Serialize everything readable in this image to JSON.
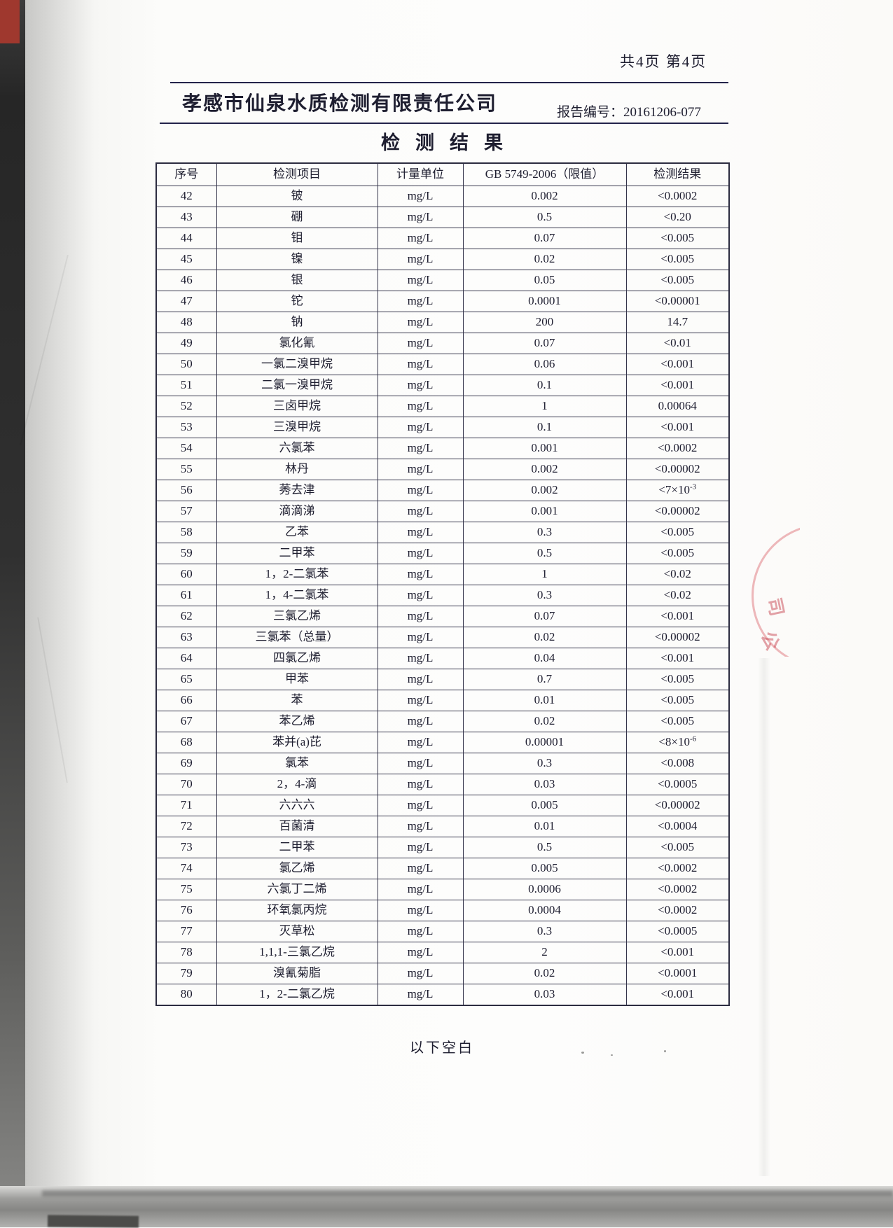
{
  "page": {
    "page_info": "共4页 第4页",
    "company": "孝感市仙泉水质检测有限责任公司",
    "report_no_label": "报告编号：",
    "report_no": "20161206-077",
    "title": "检测结果",
    "footer_note": "以下空白"
  },
  "table": {
    "headers": [
      "序号",
      "检测项目",
      "计量单位",
      "GB 5749-2006（限值）",
      "检测结果"
    ],
    "rows": [
      {
        "no": "42",
        "item": "铍",
        "unit": "mg/L",
        "limit": "0.002",
        "result": "<0.0002",
        "result_sup": ""
      },
      {
        "no": "43",
        "item": "硼",
        "unit": "mg/L",
        "limit": "0.5",
        "result": "<0.20",
        "result_sup": ""
      },
      {
        "no": "44",
        "item": "钼",
        "unit": "mg/L",
        "limit": "0.07",
        "result": "<0.005",
        "result_sup": ""
      },
      {
        "no": "45",
        "item": "镍",
        "unit": "mg/L",
        "limit": "0.02",
        "result": "<0.005",
        "result_sup": ""
      },
      {
        "no": "46",
        "item": "银",
        "unit": "mg/L",
        "limit": "0.05",
        "result": "<0.005",
        "result_sup": ""
      },
      {
        "no": "47",
        "item": "铊",
        "unit": "mg/L",
        "limit": "0.0001",
        "result": "<0.00001",
        "result_sup": ""
      },
      {
        "no": "48",
        "item": "钠",
        "unit": "mg/L",
        "limit": "200",
        "result": "14.7",
        "result_sup": ""
      },
      {
        "no": "49",
        "item": "氯化氰",
        "unit": "mg/L",
        "limit": "0.07",
        "result": "<0.01",
        "result_sup": ""
      },
      {
        "no": "50",
        "item": "一氯二溴甲烷",
        "unit": "mg/L",
        "limit": "0.06",
        "result": "<0.001",
        "result_sup": ""
      },
      {
        "no": "51",
        "item": "二氯一溴甲烷",
        "unit": "mg/L",
        "limit": "0.1",
        "result": "<0.001",
        "result_sup": ""
      },
      {
        "no": "52",
        "item": "三卤甲烷",
        "unit": "mg/L",
        "limit": "1",
        "result": "0.00064",
        "result_sup": ""
      },
      {
        "no": "53",
        "item": "三溴甲烷",
        "unit": "mg/L",
        "limit": "0.1",
        "result": "<0.001",
        "result_sup": ""
      },
      {
        "no": "54",
        "item": "六氯苯",
        "unit": "mg/L",
        "limit": "0.001",
        "result": "<0.0002",
        "result_sup": ""
      },
      {
        "no": "55",
        "item": "林丹",
        "unit": "mg/L",
        "limit": "0.002",
        "result": "<0.00002",
        "result_sup": ""
      },
      {
        "no": "56",
        "item": "莠去津",
        "unit": "mg/L",
        "limit": "0.002",
        "result": "<7×10",
        "result_sup": "-3"
      },
      {
        "no": "57",
        "item": "滴滴涕",
        "unit": "mg/L",
        "limit": "0.001",
        "result": "<0.00002",
        "result_sup": ""
      },
      {
        "no": "58",
        "item": "乙苯",
        "unit": "mg/L",
        "limit": "0.3",
        "result": "<0.005",
        "result_sup": ""
      },
      {
        "no": "59",
        "item": "二甲苯",
        "unit": "mg/L",
        "limit": "0.5",
        "result": "<0.005",
        "result_sup": ""
      },
      {
        "no": "60",
        "item": "1，2-二氯苯",
        "unit": "mg/L",
        "limit": "1",
        "result": "<0.02",
        "result_sup": ""
      },
      {
        "no": "61",
        "item": "1，4-二氯苯",
        "unit": "mg/L",
        "limit": "0.3",
        "result": "<0.02",
        "result_sup": ""
      },
      {
        "no": "62",
        "item": "三氯乙烯",
        "unit": "mg/L",
        "limit": "0.07",
        "result": "<0.001",
        "result_sup": ""
      },
      {
        "no": "63",
        "item": "三氯苯（总量）",
        "unit": "mg/L",
        "limit": "0.02",
        "result": "<0.00002",
        "result_sup": ""
      },
      {
        "no": "64",
        "item": "四氯乙烯",
        "unit": "mg/L",
        "limit": "0.04",
        "result": "<0.001",
        "result_sup": ""
      },
      {
        "no": "65",
        "item": "甲苯",
        "unit": "mg/L",
        "limit": "0.7",
        "result": "<0.005",
        "result_sup": ""
      },
      {
        "no": "66",
        "item": "苯",
        "unit": "mg/L",
        "limit": "0.01",
        "result": "<0.005",
        "result_sup": ""
      },
      {
        "no": "67",
        "item": "苯乙烯",
        "unit": "mg/L",
        "limit": "0.02",
        "result": "<0.005",
        "result_sup": ""
      },
      {
        "no": "68",
        "item": "苯并(a)芘",
        "unit": "mg/L",
        "limit": "0.00001",
        "result": "<8×10",
        "result_sup": "-6"
      },
      {
        "no": "69",
        "item": "氯苯",
        "unit": "mg/L",
        "limit": "0.3",
        "result": "<0.008",
        "result_sup": ""
      },
      {
        "no": "70",
        "item": "2，4-滴",
        "unit": "mg/L",
        "limit": "0.03",
        "result": "<0.0005",
        "result_sup": ""
      },
      {
        "no": "71",
        "item": "六六六",
        "unit": "mg/L",
        "limit": "0.005",
        "result": "<0.00002",
        "result_sup": ""
      },
      {
        "no": "72",
        "item": "百菌清",
        "unit": "mg/L",
        "limit": "0.01",
        "result": "<0.0004",
        "result_sup": ""
      },
      {
        "no": "73",
        "item": "二甲苯",
        "unit": "mg/L",
        "limit": "0.5",
        "result": "<0.005",
        "result_sup": ""
      },
      {
        "no": "74",
        "item": "氯乙烯",
        "unit": "mg/L",
        "limit": "0.005",
        "result": "<0.0002",
        "result_sup": ""
      },
      {
        "no": "75",
        "item": "六氯丁二烯",
        "unit": "mg/L",
        "limit": "0.0006",
        "result": "<0.0002",
        "result_sup": ""
      },
      {
        "no": "76",
        "item": "环氧氯丙烷",
        "unit": "mg/L",
        "limit": "0.0004",
        "result": "<0.0002",
        "result_sup": ""
      },
      {
        "no": "77",
        "item": "灭草松",
        "unit": "mg/L",
        "limit": "0.3",
        "result": "<0.0005",
        "result_sup": ""
      },
      {
        "no": "78",
        "item": "1,1,1-三氯乙烷",
        "unit": "mg/L",
        "limit": "2",
        "result": "<0.001",
        "result_sup": ""
      },
      {
        "no": "79",
        "item": "溴氰菊脂",
        "unit": "mg/L",
        "limit": "0.02",
        "result": "<0.0001",
        "result_sup": ""
      },
      {
        "no": "80",
        "item": "1，2-二氯乙烷",
        "unit": "mg/L",
        "limit": "0.03",
        "result": "<0.001",
        "result_sup": ""
      }
    ]
  },
  "stamp": {
    "color": "#d8585f",
    "chars": [
      "司",
      "公"
    ]
  }
}
